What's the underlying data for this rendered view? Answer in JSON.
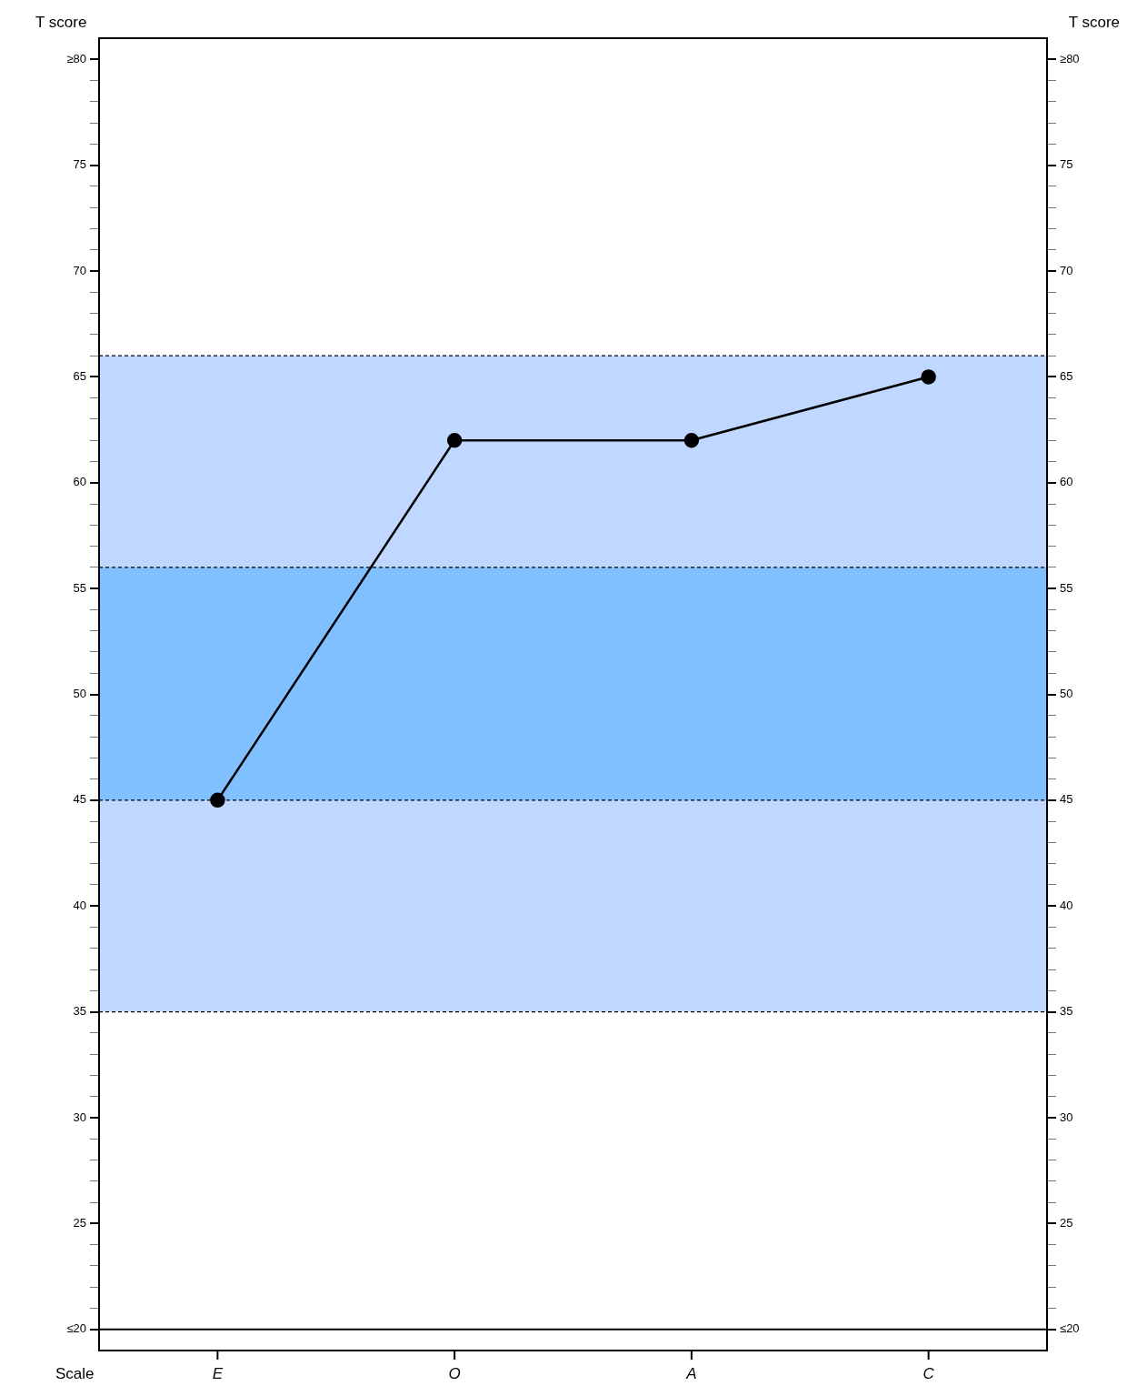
{
  "chart_data": {
    "type": "line",
    "categories": [
      "E",
      "O",
      "A",
      "C"
    ],
    "series": [
      {
        "color": "#000000",
        "values": [
          45,
          62,
          62,
          65
        ]
      }
    ],
    "xlabel": "Scale",
    "ylabel": "T score",
    "y2label": "T score",
    "ylim": [
      19,
      81
    ],
    "y2lim": [
      19,
      81
    ],
    "yticks": [
      {
        "value": 20,
        "label": "≤20"
      },
      {
        "value": 21,
        "label": null
      },
      {
        "value": 22,
        "label": null
      },
      {
        "value": 23,
        "label": null
      },
      {
        "value": 24,
        "label": null
      },
      25,
      {
        "value": 26,
        "label": null
      },
      {
        "value": 27,
        "label": null
      },
      {
        "value": 28,
        "label": null
      },
      {
        "value": 29,
        "label": null
      },
      30,
      {
        "value": 31,
        "label": null
      },
      {
        "value": 32,
        "label": null
      },
      {
        "value": 33,
        "label": null
      },
      {
        "value": 34,
        "label": null
      },
      35,
      {
        "value": 36,
        "label": null
      },
      {
        "value": 37,
        "label": null
      },
      {
        "value": 38,
        "label": null
      },
      {
        "value": 39,
        "label": null
      },
      40,
      {
        "value": 41,
        "label": null
      },
      {
        "value": 42,
        "label": null
      },
      {
        "value": 43,
        "label": null
      },
      {
        "value": 44,
        "label": null
      },
      45,
      {
        "value": 46,
        "label": null
      },
      {
        "value": 47,
        "label": null
      },
      {
        "value": 48,
        "label": null
      },
      {
        "value": 49,
        "label": null
      },
      50,
      {
        "value": 51,
        "label": null
      },
      {
        "value": 52,
        "label": null
      },
      {
        "value": 53,
        "label": null
      },
      {
        "value": 54,
        "label": null
      },
      55,
      {
        "value": 56,
        "label": null
      },
      {
        "value": 57,
        "label": null
      },
      {
        "value": 58,
        "label": null
      },
      {
        "value": 59,
        "label": null
      },
      60,
      {
        "value": 61,
        "label": null
      },
      {
        "value": 62,
        "label": null
      },
      {
        "value": 63,
        "label": null
      },
      {
        "value": 64,
        "label": null
      },
      65,
      {
        "value": 66,
        "label": null
      },
      {
        "value": 67,
        "label": null
      },
      {
        "value": 68,
        "label": null
      },
      {
        "value": 69,
        "label": null
      },
      70,
      {
        "value": 71,
        "label": null
      },
      {
        "value": 72,
        "label": null
      },
      {
        "value": 73,
        "label": null
      },
      {
        "value": 74,
        "label": null
      },
      75,
      {
        "value": 76,
        "label": null
      },
      {
        "value": 77,
        "label": null
      },
      {
        "value": 78,
        "label": null
      },
      {
        "value": 79,
        "label": null
      },
      {
        "value": 80,
        "label": "≥80"
      }
    ],
    "y2ticks": [
      {
        "value": 20,
        "label": "≤20"
      },
      {
        "value": 21,
        "label": null
      },
      {
        "value": 22,
        "label": null
      },
      {
        "value": 23,
        "label": null
      },
      {
        "value": 24,
        "label": null
      },
      25,
      {
        "value": 26,
        "label": null
      },
      {
        "value": 27,
        "label": null
      },
      {
        "value": 28,
        "label": null
      },
      {
        "value": 29,
        "label": null
      },
      30,
      {
        "value": 31,
        "label": null
      },
      {
        "value": 32,
        "label": null
      },
      {
        "value": 33,
        "label": null
      },
      {
        "value": 34,
        "label": null
      },
      35,
      {
        "value": 36,
        "label": null
      },
      {
        "value": 37,
        "label": null
      },
      {
        "value": 38,
        "label": null
      },
      {
        "value": 39,
        "label": null
      },
      40,
      {
        "value": 41,
        "label": null
      },
      {
        "value": 42,
        "label": null
      },
      {
        "value": 43,
        "label": null
      },
      {
        "value": 44,
        "label": null
      },
      45,
      {
        "value": 46,
        "label": null
      },
      {
        "value": 47,
        "label": null
      },
      {
        "value": 48,
        "label": null
      },
      {
        "value": 49,
        "label": null
      },
      50,
      {
        "value": 51,
        "label": null
      },
      {
        "value": 52,
        "label": null
      },
      {
        "value": 53,
        "label": null
      },
      {
        "value": 54,
        "label": null
      },
      55,
      {
        "value": 56,
        "label": null
      },
      {
        "value": 57,
        "label": null
      },
      {
        "value": 58,
        "label": null
      },
      {
        "value": 59,
        "label": null
      },
      60,
      {
        "value": 61,
        "label": null
      },
      {
        "value": 62,
        "label": null
      },
      {
        "value": 63,
        "label": null
      },
      {
        "value": 64,
        "label": null
      },
      65,
      {
        "value": 66,
        "label": null
      },
      {
        "value": 67,
        "label": null
      },
      {
        "value": 68,
        "label": null
      },
      {
        "value": 69,
        "label": null
      },
      70,
      {
        "value": 71,
        "label": null
      },
      {
        "value": 72,
        "label": null
      },
      {
        "value": 73,
        "label": null
      },
      {
        "value": 74,
        "label": null
      },
      75,
      {
        "value": 76,
        "label": null
      },
      {
        "value": 77,
        "label": null
      },
      {
        "value": 78,
        "label": null
      },
      {
        "value": 79,
        "label": null
      },
      {
        "value": 80,
        "label": "≥80"
      }
    ],
    "bands": [
      {
        "axis": "y",
        "from": 35,
        "to": 66,
        "color": "#c0d8ff"
      },
      {
        "axis": "y",
        "from": 45,
        "to": 56,
        "color": "#80c0ff"
      }
    ],
    "ref_lines": [
      {
        "axis": "y",
        "value": 35,
        "line_style": "dashed",
        "color": "#000000"
      },
      {
        "axis": "y",
        "value": 45,
        "line_style": "dashed",
        "color": "#000000"
      },
      {
        "axis": "y",
        "value": 56,
        "line_style": "dashed",
        "color": "#000000"
      },
      {
        "axis": "y",
        "value": 66,
        "line_style": "dashed",
        "color": "#000000"
      },
      {
        "axis": "y",
        "value": 20,
        "line_style": "solid",
        "color": "#000000"
      }
    ],
    "marker": "circle",
    "line_style": "solid",
    "grid": false,
    "legend": false
  }
}
